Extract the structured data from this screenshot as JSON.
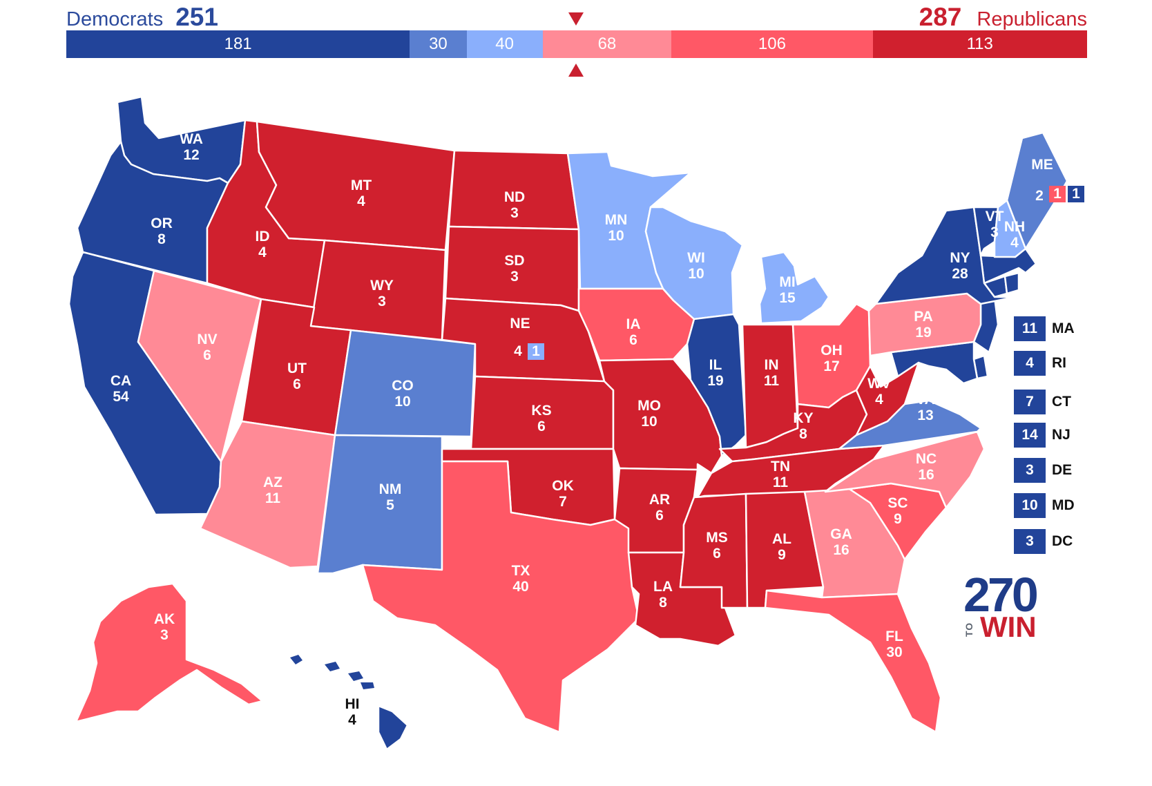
{
  "header": {
    "dem_label": "Democrats",
    "dem_total": "251",
    "rep_total": "287",
    "rep_label": "Republicans"
  },
  "colors": {
    "safe_dem": "#22449a",
    "likely_dem": "#5a7fd0",
    "lean_dem": "#8aaffc",
    "tilt_rep": "#ff8a96",
    "lean_rep": "#ff5866",
    "safe_rep": "#d0202e",
    "border": "#ffffff"
  },
  "bar": [
    {
      "label": "181",
      "value": 181,
      "color": "#22449a"
    },
    {
      "label": "30",
      "value": 30,
      "color": "#5a7fd0"
    },
    {
      "label": "40",
      "value": 40,
      "color": "#8aaffc"
    },
    {
      "label": "68",
      "value": 68,
      "color": "#ff8a96"
    },
    {
      "label": "106",
      "value": 106,
      "color": "#ff5866"
    },
    {
      "label": "113",
      "value": 113,
      "color": "#d0202e"
    }
  ],
  "states": [
    {
      "abbr": "WA",
      "ev": "12",
      "rating": "safe_dem"
    },
    {
      "abbr": "OR",
      "ev": "8",
      "rating": "safe_dem"
    },
    {
      "abbr": "CA",
      "ev": "54",
      "rating": "safe_dem"
    },
    {
      "abbr": "NV",
      "ev": "6",
      "rating": "tilt_rep"
    },
    {
      "abbr": "ID",
      "ev": "4",
      "rating": "safe_rep"
    },
    {
      "abbr": "MT",
      "ev": "4",
      "rating": "safe_rep"
    },
    {
      "abbr": "WY",
      "ev": "3",
      "rating": "safe_rep"
    },
    {
      "abbr": "UT",
      "ev": "6",
      "rating": "safe_rep"
    },
    {
      "abbr": "AZ",
      "ev": "11",
      "rating": "tilt_rep"
    },
    {
      "abbr": "CO",
      "ev": "10",
      "rating": "likely_dem"
    },
    {
      "abbr": "NM",
      "ev": "5",
      "rating": "likely_dem"
    },
    {
      "abbr": "ND",
      "ev": "3",
      "rating": "safe_rep"
    },
    {
      "abbr": "SD",
      "ev": "3",
      "rating": "safe_rep"
    },
    {
      "abbr": "NE",
      "ev": "4",
      "rating": "safe_rep"
    },
    {
      "abbr": "KS",
      "ev": "6",
      "rating": "safe_rep"
    },
    {
      "abbr": "OK",
      "ev": "7",
      "rating": "safe_rep"
    },
    {
      "abbr": "TX",
      "ev": "40",
      "rating": "lean_rep"
    },
    {
      "abbr": "MN",
      "ev": "10",
      "rating": "lean_dem"
    },
    {
      "abbr": "IA",
      "ev": "6",
      "rating": "lean_rep"
    },
    {
      "abbr": "MO",
      "ev": "10",
      "rating": "safe_rep"
    },
    {
      "abbr": "AR",
      "ev": "6",
      "rating": "safe_rep"
    },
    {
      "abbr": "LA",
      "ev": "8",
      "rating": "safe_rep"
    },
    {
      "abbr": "WI",
      "ev": "10",
      "rating": "lean_dem"
    },
    {
      "abbr": "IL",
      "ev": "19",
      "rating": "safe_dem"
    },
    {
      "abbr": "MI",
      "ev": "15",
      "rating": "lean_dem"
    },
    {
      "abbr": "IN",
      "ev": "11",
      "rating": "safe_rep"
    },
    {
      "abbr": "OH",
      "ev": "17",
      "rating": "lean_rep"
    },
    {
      "abbr": "KY",
      "ev": "8",
      "rating": "safe_rep"
    },
    {
      "abbr": "TN",
      "ev": "11",
      "rating": "safe_rep"
    },
    {
      "abbr": "MS",
      "ev": "6",
      "rating": "safe_rep"
    },
    {
      "abbr": "AL",
      "ev": "9",
      "rating": "safe_rep"
    },
    {
      "abbr": "GA",
      "ev": "16",
      "rating": "tilt_rep"
    },
    {
      "abbr": "FL",
      "ev": "30",
      "rating": "lean_rep"
    },
    {
      "abbr": "SC",
      "ev": "9",
      "rating": "lean_rep"
    },
    {
      "abbr": "NC",
      "ev": "16",
      "rating": "tilt_rep"
    },
    {
      "abbr": "VA",
      "ev": "13",
      "rating": "likely_dem"
    },
    {
      "abbr": "WV",
      "ev": "4",
      "rating": "safe_rep"
    },
    {
      "abbr": "PA",
      "ev": "19",
      "rating": "tilt_rep"
    },
    {
      "abbr": "NY",
      "ev": "28",
      "rating": "safe_dem"
    },
    {
      "abbr": "VT",
      "ev": "3",
      "rating": "safe_dem"
    },
    {
      "abbr": "NH",
      "ev": "4",
      "rating": "lean_dem"
    },
    {
      "abbr": "ME",
      "ev": "2",
      "rating": "likely_dem"
    },
    {
      "abbr": "AK",
      "ev": "3",
      "rating": "lean_rep"
    },
    {
      "abbr": "HI",
      "ev": "4",
      "rating": "safe_dem"
    }
  ],
  "split_districts": {
    "ne": {
      "value": "1",
      "rating": "lean_dem"
    },
    "me_1": {
      "value": "1",
      "rating": "lean_rep"
    },
    "me_2": {
      "value": "1",
      "rating": "safe_dem"
    }
  },
  "small_states": [
    {
      "ev": "11",
      "abbr": "MA"
    },
    {
      "ev": "4",
      "abbr": "RI"
    },
    {
      "ev": "7",
      "abbr": "CT"
    },
    {
      "ev": "14",
      "abbr": "NJ"
    },
    {
      "ev": "3",
      "abbr": "DE"
    },
    {
      "ev": "10",
      "abbr": "MD"
    },
    {
      "ev": "3",
      "abbr": "DC"
    }
  ],
  "logo": {
    "number": "270",
    "to": "TO",
    "win": "WIN"
  }
}
